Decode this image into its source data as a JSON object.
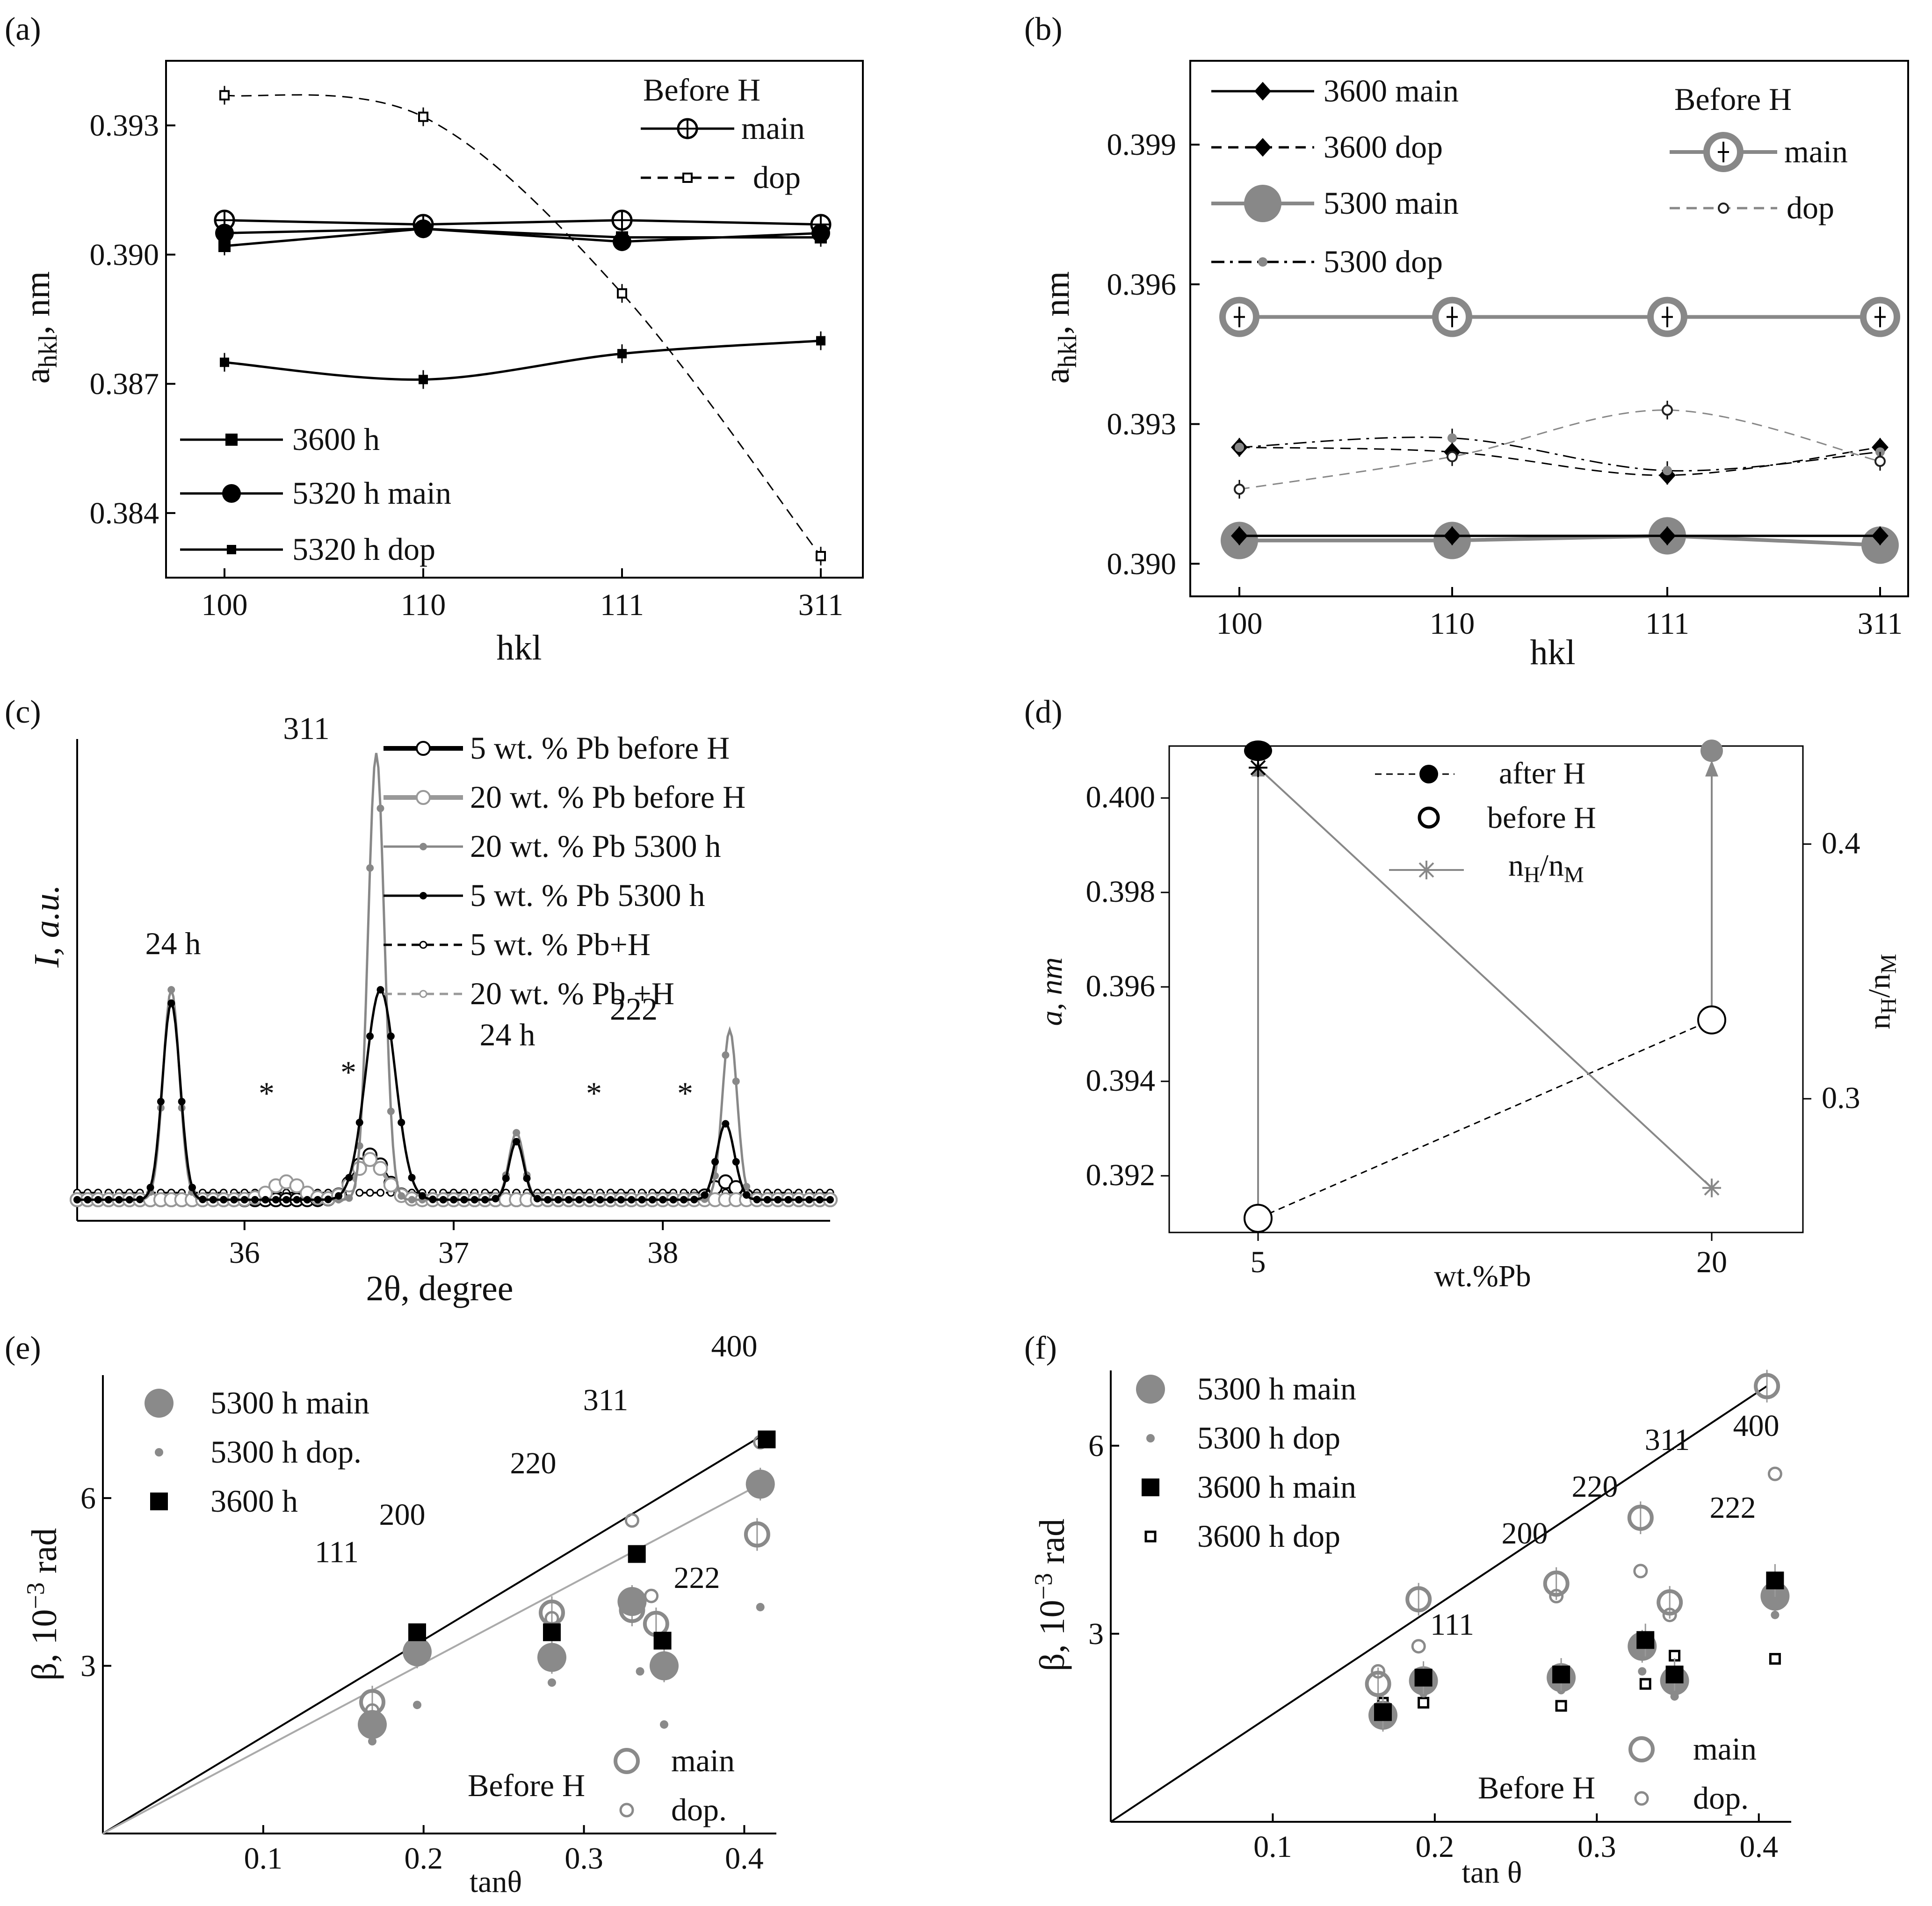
{
  "panels": [
    {
      "label": "(a)",
      "chart_data": {
        "type": "line",
        "xlabel": "hkl",
        "ylabel": "a_hkl, nm",
        "categories": [
          "100",
          "110",
          "111",
          "311"
        ],
        "ylim": [
          0.3825,
          0.3945
        ],
        "yticks": [
          "0.384",
          "0.387",
          "0.390",
          "0.393"
        ],
        "legend_groups": [
          {
            "title": "Before H",
            "position": "top-right"
          }
        ],
        "series": [
          {
            "name": "main",
            "group": "Before H",
            "values": [
              0.3908,
              0.3907,
              0.3908,
              0.3907
            ],
            "marker": "open-circle-plus",
            "color": "#000000",
            "line": "solid"
          },
          {
            "name": "dop",
            "group": "Before H",
            "values": [
              0.3937,
              0.3932,
              0.3891,
              0.383
            ],
            "marker": "open-square",
            "color": "#000000",
            "line": "dashed"
          },
          {
            "name": "3600 h",
            "values": [
              0.3902,
              0.3906,
              0.3904,
              0.3904
            ],
            "marker": "square",
            "color": "#000000",
            "line": "solid"
          },
          {
            "name": "5320 h main",
            "values": [
              0.3905,
              0.3906,
              0.3903,
              0.3905
            ],
            "marker": "filled-circle",
            "color": "#000000",
            "line": "solid"
          },
          {
            "name": "5320 h dop",
            "values": [
              0.3875,
              0.3871,
              0.3877,
              0.388
            ],
            "marker": "small-square",
            "color": "#000000",
            "line": "solid"
          }
        ]
      }
    },
    {
      "label": "(b)",
      "chart_data": {
        "type": "line",
        "xlabel": "hkl",
        "ylabel": "a_hkl, nm",
        "categories": [
          "100",
          "110",
          "111",
          "311"
        ],
        "ylim": [
          0.3893,
          0.4008
        ],
        "yticks": [
          "0.390",
          "0.393",
          "0.396",
          "0.399"
        ],
        "legend_groups": [
          {
            "title": "Before H",
            "position": "top-right"
          }
        ],
        "series": [
          {
            "name": "3600  main",
            "values": [
              0.3906,
              0.3906,
              0.3906,
              0.3906
            ],
            "marker": "diamond",
            "color": "#000000",
            "line": "solid"
          },
          {
            "name": "3600  dop",
            "values": [
              0.3925,
              0.3924,
              0.3919,
              0.3925
            ],
            "marker": "diamond",
            "color": "#000000",
            "line": "dashed"
          },
          {
            "name": "5300 main",
            "values": [
              0.3905,
              0.3905,
              0.3906,
              0.3904
            ],
            "marker": "big-filled-circle",
            "color": "#888888",
            "line": "solid"
          },
          {
            "name": "5300  dop",
            "values": [
              0.3925,
              0.3927,
              0.392,
              0.3924
            ],
            "marker": "small-dot",
            "color": "#000000",
            "line": "dashdot"
          },
          {
            "name": "main",
            "group": "Before H",
            "values": [
              0.3953,
              0.3953,
              0.3953,
              0.3953
            ],
            "marker": "big-open-circle-plus",
            "color": "#888888",
            "line": "solid"
          },
          {
            "name": "dop",
            "group": "Before H",
            "values": [
              0.3916,
              0.3923,
              0.3933,
              0.3922
            ],
            "marker": "small-open-circle",
            "color": "#888888",
            "line": "dashed"
          }
        ]
      }
    },
    {
      "label": "(c)",
      "chart_data": {
        "type": "line",
        "xlabel": "2θ, degree",
        "ylabel": "I, a.u.",
        "xlim": [
          35.2,
          38.8
        ],
        "xticks": [
          "36",
          "37",
          "38"
        ],
        "legend_position": "top-right",
        "annotations": [
          "311",
          "24 h",
          "24 h",
          "222",
          "*",
          "*",
          "*",
          "*"
        ],
        "series": [
          {
            "name": "5 wt. % Pb before H",
            "peaks": [
              {
                "x": 36.6,
                "h": 0.1,
                "w": 0.1
              },
              {
                "x": 38.3,
                "h": 0.04,
                "w": 0.08
              }
            ],
            "color": "#000000",
            "line": "thick",
            "marker": "open-circle"
          },
          {
            "name": "20 wt. % Pb before H",
            "peaks": [
              {
                "x": 36.2,
                "h": 0.04,
                "w": 0.1
              },
              {
                "x": 36.6,
                "h": 0.09,
                "w": 0.1
              }
            ],
            "color": "#999999",
            "line": "thick",
            "marker": "open-circle"
          },
          {
            "name": "20 wt. % Pb 5300 h",
            "peaks": [
              {
                "x": 35.65,
                "h": 0.47,
                "w": 0.055
              },
              {
                "x": 36.63,
                "h": 1.0,
                "w": 0.055
              },
              {
                "x": 37.3,
                "h": 0.15,
                "w": 0.05
              },
              {
                "x": 38.32,
                "h": 0.38,
                "w": 0.05
              }
            ],
            "color": "#888888",
            "line": "solid",
            "marker": "filled-dot"
          },
          {
            "name": "5 wt. % Pb 5300 h",
            "peaks": [
              {
                "x": 35.65,
                "h": 0.44,
                "w": 0.06
              },
              {
                "x": 36.65,
                "h": 0.47,
                "w": 0.1
              },
              {
                "x": 37.3,
                "h": 0.13,
                "w": 0.05
              },
              {
                "x": 38.3,
                "h": 0.17,
                "w": 0.06
              }
            ],
            "color": "#000000",
            "line": "solid",
            "marker": "filled-dot"
          },
          {
            "name": "5 wt. % Pb+H",
            "peaks": [],
            "color": "#000000",
            "line": "dashed",
            "marker": "small-open"
          },
          {
            "name": "20 wt. % Pb +H",
            "peaks": [],
            "color": "#999999",
            "line": "dashed",
            "marker": "small-open"
          }
        ]
      }
    },
    {
      "label": "(d)",
      "chart_data": {
        "type": "scatter",
        "xlabel": "wt.%Pb",
        "ylabel": "a, nm",
        "y2label": "n_H/n_M",
        "categories": [
          "5",
          "20"
        ],
        "ylim": [
          0.3908,
          0.4011
        ],
        "yticks": [
          "0.392",
          "0.394",
          "0.396",
          "0.398",
          "0.400"
        ],
        "y2lim": [
          0.2475,
          0.4385
        ],
        "y2ticks": [
          "0.3",
          "0.4"
        ],
        "legend_position": "top-right",
        "series": [
          {
            "name": "after H",
            "values": [
              0.401,
              0.401
            ],
            "marker": "filled-circle",
            "line": "dashed"
          },
          {
            "name": "before H",
            "values": [
              0.3911,
              0.3953
            ],
            "marker": "open-circle",
            "line": "dashed"
          },
          {
            "name": "n_H/n_M",
            "values": [
              0.43,
              0.265
            ],
            "axis": "right",
            "marker": "asterisk",
            "line": "solid",
            "color": "#888888"
          }
        ]
      }
    },
    {
      "label": "(e)",
      "chart_data": {
        "type": "scatter",
        "xlabel": "tanθ",
        "ylabel": "β, 10^-3 rad",
        "xlim": [
          0.0,
          0.42
        ],
        "xticks": [
          "0.1",
          "0.2",
          "0.3",
          "0.4"
        ],
        "ylim": [
          0.0,
          8.2
        ],
        "yticks": [
          "3",
          "6"
        ],
        "reflection_labels": [
          "111",
          "200",
          "220",
          "311",
          "222",
          "400"
        ],
        "legend_groups": [
          {
            "title": "Before H",
            "position": "bottom-right"
          }
        ],
        "series": [
          {
            "name": "5300 h main",
            "x": [
              0.168,
              0.196,
              0.28,
              0.33,
              0.35,
              0.41
            ],
            "y": [
              1.95,
              3.25,
              3.15,
              4.15,
              3.0,
              6.25
            ],
            "marker": "big-gray-circle"
          },
          {
            "name": "5300 h dop.",
            "x": [
              0.168,
              0.196,
              0.28,
              0.335,
              0.35,
              0.41
            ],
            "y": [
              1.65,
              2.3,
              2.7,
              2.9,
              1.95,
              4.05
            ],
            "marker": "small-gray-dot"
          },
          {
            "name": "3600 h",
            "x": [
              0.196,
              0.28,
              0.333,
              0.349,
              0.414
            ],
            "y": [
              3.6,
              3.6,
              5.0,
              3.45,
              7.05
            ],
            "marker": "black-square"
          },
          {
            "name": "main",
            "group": "Before H",
            "x": [
              0.168,
              0.196,
              0.28,
              0.33,
              0.345,
              0.408
            ],
            "y": [
              2.35,
              3.25,
              3.95,
              4.0,
              3.75,
              5.35
            ],
            "marker": "open-gray-circle"
          },
          {
            "name": "dop.",
            "group": "Before H",
            "x": [
              0.168,
              0.196,
              0.28,
              0.33,
              0.342,
              0.41
            ],
            "y": [
              2.2,
              3.3,
              3.85,
              5.6,
              4.25,
              7.0
            ],
            "marker": "small-open-gray-circle"
          }
        ],
        "fit_lines": [
          {
            "x": [
              0.0,
              0.41
            ],
            "y": [
              0.0,
              7.1
            ],
            "color": "#000000"
          },
          {
            "x": [
              0.0,
              0.41
            ],
            "y": [
              0.0,
              6.25
            ],
            "color": "#aaaaaa"
          }
        ]
      }
    },
    {
      "label": "(f)",
      "chart_data": {
        "type": "scatter",
        "xlabel": "tan θ",
        "ylabel": "β, 10^-3 rad",
        "xlim": [
          0.0,
          0.42
        ],
        "xticks": [
          "0.1",
          "0.2",
          "0.3",
          "0.4"
        ],
        "ylim": [
          0.0,
          7.2
        ],
        "yticks": [
          "3",
          "6"
        ],
        "reflection_labels": [
          "111",
          "200",
          "220",
          "311",
          "222",
          "400"
        ],
        "legend_groups": [
          {
            "title": "Before H",
            "position": "bottom-right"
          }
        ],
        "series": [
          {
            "name": "5300 h main",
            "x": [
              0.168,
              0.193,
              0.278,
              0.328,
              0.348,
              0.41
            ],
            "y": [
              1.7,
              2.25,
              2.3,
              2.8,
              2.25,
              3.6
            ],
            "marker": "big-gray-circle"
          },
          {
            "name": "5300 h dop",
            "x": [
              0.168,
              0.193,
              0.278,
              0.328,
              0.348,
              0.41
            ],
            "y": [
              1.6,
              2.05,
              2.1,
              2.4,
              2.0,
              3.3
            ],
            "marker": "small-gray-dot"
          },
          {
            "name": "3600 h main",
            "x": [
              0.168,
              0.193,
              0.278,
              0.33,
              0.348,
              0.41
            ],
            "y": [
              1.75,
              2.3,
              2.35,
              2.9,
              2.35,
              3.85
            ],
            "marker": "black-square"
          },
          {
            "name": "3600 h dop",
            "x": [
              0.168,
              0.193,
              0.278,
              0.33,
              0.348,
              0.41
            ],
            "y": [
              1.9,
              1.9,
              1.85,
              2.2,
              2.65,
              2.6
            ],
            "marker": "open-black-square"
          },
          {
            "name": "main",
            "group": "Before H",
            "x": [
              0.165,
              0.19,
              0.275,
              0.327,
              0.345,
              0.405
            ],
            "y": [
              2.2,
              3.55,
              3.8,
              4.85,
              3.5,
              6.95
            ],
            "marker": "open-gray-circle"
          },
          {
            "name": "dop.",
            "group": "Before H",
            "x": [
              0.165,
              0.19,
              0.275,
              0.327,
              0.345,
              0.41
            ],
            "y": [
              2.4,
              2.8,
              3.6,
              4.0,
              3.3,
              5.55
            ],
            "marker": "small-open-gray-circle"
          }
        ],
        "fit_lines": [
          {
            "x": [
              0.0,
              0.405
            ],
            "y": [
              0.0,
              6.95
            ],
            "color": "#000000"
          }
        ]
      }
    }
  ]
}
